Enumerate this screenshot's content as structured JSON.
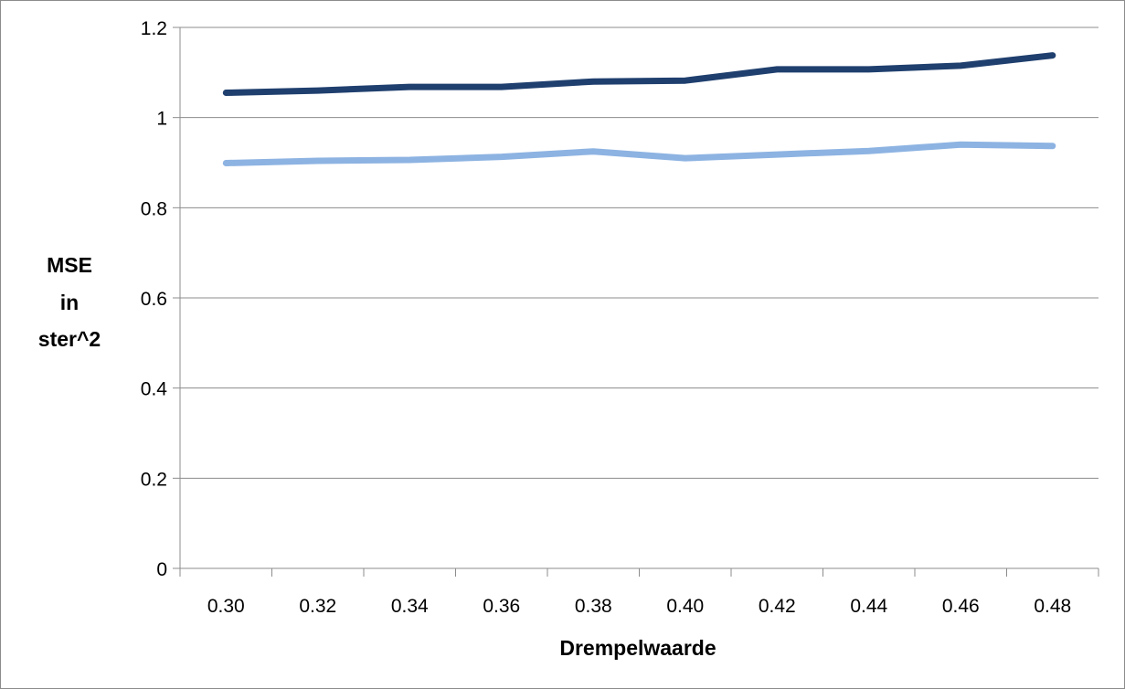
{
  "chart_data": {
    "type": "line",
    "title": "",
    "xlabel": "Drempelwaarde",
    "ylabel_lines": [
      "MSE",
      "in",
      "ster^2"
    ],
    "categories": [
      "0.30",
      "0.32",
      "0.34",
      "0.36",
      "0.38",
      "0.40",
      "0.42",
      "0.44",
      "0.46",
      "0.48"
    ],
    "y_ticks": [
      "0",
      "0.2",
      "0.4",
      "0.6",
      "0.8",
      "1",
      "1.2"
    ],
    "ylim": [
      0,
      1.2
    ],
    "grid": true,
    "legend": "none",
    "series": [
      {
        "color": "#1f3f6e",
        "values": [
          1.055,
          1.06,
          1.068,
          1.068,
          1.08,
          1.082,
          1.107,
          1.107,
          1.115,
          1.138
        ]
      },
      {
        "color": "#8db3e2",
        "values": [
          0.899,
          0.904,
          0.906,
          0.913,
          0.925,
          0.91,
          0.918,
          0.926,
          0.94,
          0.937
        ]
      }
    ]
  }
}
